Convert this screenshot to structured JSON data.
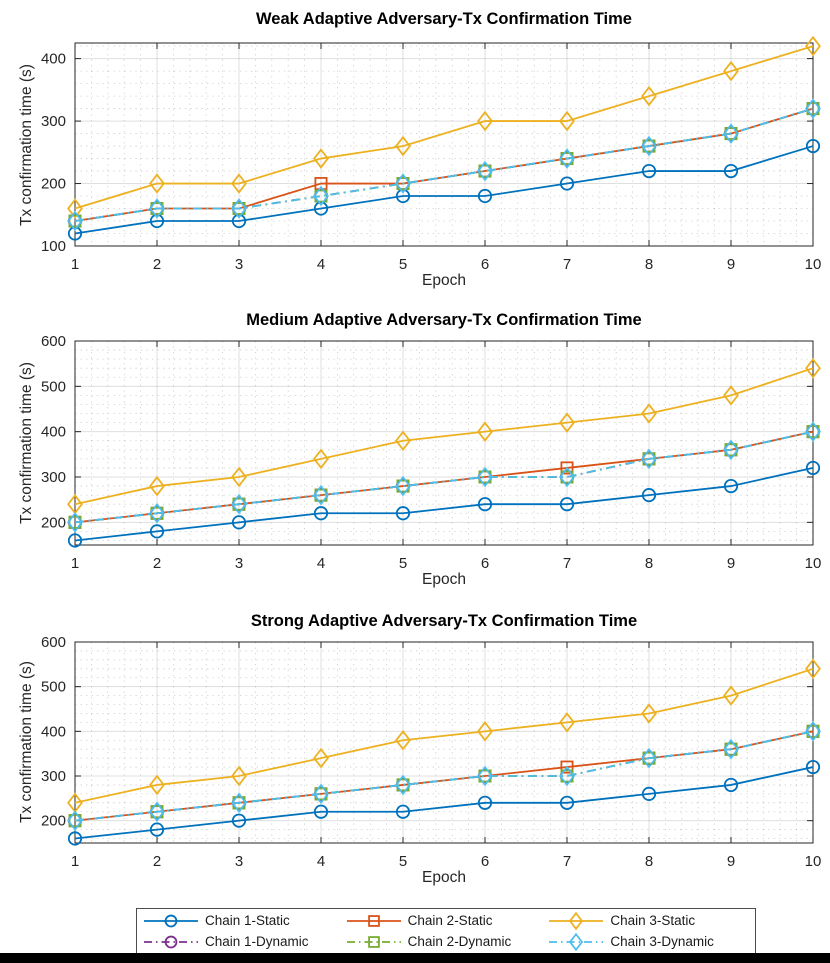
{
  "figure": {
    "background": "#ffffff",
    "bottom_bar_color": "#000000"
  },
  "chart_data": [
    {
      "type": "line",
      "title": "Weak Adaptive Adversary-Tx Confirmation Time",
      "xlabel": "Epoch",
      "ylabel": "Tx confirmation time (s)",
      "x": [
        1,
        2,
        3,
        4,
        5,
        6,
        7,
        8,
        9,
        10
      ],
      "xlim": [
        1,
        10
      ],
      "ylim": [
        100,
        425
      ],
      "yticks": [
        100,
        200,
        300,
        400
      ],
      "grid": {
        "major": true,
        "minor": true
      },
      "legend_position": "bottom",
      "series": [
        {
          "name": "Chain 1-Static",
          "color": "#0072BD",
          "marker": "circle",
          "line": "solid",
          "values": [
            120,
            140,
            140,
            160,
            180,
            180,
            200,
            220,
            220,
            260
          ]
        },
        {
          "name": "Chain 2-Static",
          "color": "#D95319",
          "marker": "square",
          "line": "solid",
          "values": [
            140,
            160,
            160,
            200,
            200,
            220,
            240,
            260,
            280,
            320
          ]
        },
        {
          "name": "Chain 3-Static",
          "color": "#EDB120",
          "marker": "diamond",
          "line": "solid",
          "values": [
            160,
            200,
            200,
            240,
            260,
            300,
            300,
            340,
            380,
            420
          ]
        },
        {
          "name": "Chain 1-Dynamic",
          "color": "#7E2F8E",
          "marker": "circle",
          "line": "dashdot",
          "values": [
            140,
            160,
            160,
            180,
            200,
            220,
            240,
            260,
            280,
            320
          ]
        },
        {
          "name": "Chain 2-Dynamic",
          "color": "#77AC30",
          "marker": "square",
          "line": "dashdot",
          "values": [
            140,
            160,
            160,
            180,
            200,
            220,
            240,
            260,
            280,
            320
          ]
        },
        {
          "name": "Chain 3-Dynamic",
          "color": "#4DBEEE",
          "marker": "diamond",
          "line": "dashdot",
          "values": [
            140,
            160,
            160,
            180,
            200,
            220,
            240,
            260,
            280,
            320
          ]
        }
      ]
    },
    {
      "type": "line",
      "title": "Medium Adaptive Adversary-Tx Confirmation Time",
      "xlabel": "Epoch",
      "ylabel": "Tx confirmation time (s)",
      "x": [
        1,
        2,
        3,
        4,
        5,
        6,
        7,
        8,
        9,
        10
      ],
      "xlim": [
        1,
        10
      ],
      "ylim": [
        150,
        600
      ],
      "yticks": [
        200,
        300,
        400,
        500,
        600
      ],
      "grid": {
        "major": true,
        "minor": true
      },
      "legend_position": "bottom",
      "series": [
        {
          "name": "Chain 1-Static",
          "color": "#0072BD",
          "marker": "circle",
          "line": "solid",
          "values": [
            160,
            180,
            200,
            220,
            220,
            240,
            240,
            260,
            280,
            320
          ]
        },
        {
          "name": "Chain 2-Static",
          "color": "#D95319",
          "marker": "square",
          "line": "solid",
          "values": [
            200,
            220,
            240,
            260,
            280,
            300,
            320,
            340,
            360,
            400
          ]
        },
        {
          "name": "Chain 3-Static",
          "color": "#EDB120",
          "marker": "diamond",
          "line": "solid",
          "values": [
            240,
            280,
            300,
            340,
            380,
            400,
            420,
            440,
            480,
            540
          ]
        },
        {
          "name": "Chain 1-Dynamic",
          "color": "#7E2F8E",
          "marker": "circle",
          "line": "dashdot",
          "values": [
            200,
            220,
            240,
            260,
            280,
            300,
            300,
            340,
            360,
            400
          ]
        },
        {
          "name": "Chain 2-Dynamic",
          "color": "#77AC30",
          "marker": "square",
          "line": "dashdot",
          "values": [
            200,
            220,
            240,
            260,
            280,
            300,
            300,
            340,
            360,
            400
          ]
        },
        {
          "name": "Chain 3-Dynamic",
          "color": "#4DBEEE",
          "marker": "diamond",
          "line": "dashdot",
          "values": [
            200,
            220,
            240,
            260,
            280,
            300,
            300,
            340,
            360,
            400
          ]
        }
      ]
    },
    {
      "type": "line",
      "title": "Strong Adaptive Adversary-Tx Confirmation Time",
      "xlabel": "Epoch",
      "ylabel": "Tx confirmation time (s)",
      "x": [
        1,
        2,
        3,
        4,
        5,
        6,
        7,
        8,
        9,
        10
      ],
      "xlim": [
        1,
        10
      ],
      "ylim": [
        150,
        600
      ],
      "yticks": [
        200,
        300,
        400,
        500,
        600
      ],
      "grid": {
        "major": true,
        "minor": true
      },
      "legend_position": "bottom",
      "series": [
        {
          "name": "Chain 1-Static",
          "color": "#0072BD",
          "marker": "circle",
          "line": "solid",
          "values": [
            160,
            180,
            200,
            220,
            220,
            240,
            240,
            260,
            280,
            320
          ]
        },
        {
          "name": "Chain 2-Static",
          "color": "#D95319",
          "marker": "square",
          "line": "solid",
          "values": [
            200,
            220,
            240,
            260,
            280,
            300,
            320,
            340,
            360,
            400
          ]
        },
        {
          "name": "Chain 3-Static",
          "color": "#EDB120",
          "marker": "diamond",
          "line": "solid",
          "values": [
            240,
            280,
            300,
            340,
            380,
            400,
            420,
            440,
            480,
            540
          ]
        },
        {
          "name": "Chain 1-Dynamic",
          "color": "#7E2F8E",
          "marker": "circle",
          "line": "dashdot",
          "values": [
            200,
            220,
            240,
            260,
            280,
            300,
            300,
            340,
            360,
            400
          ]
        },
        {
          "name": "Chain 2-Dynamic",
          "color": "#77AC30",
          "marker": "square",
          "line": "dashdot",
          "values": [
            200,
            220,
            240,
            260,
            280,
            300,
            300,
            340,
            360,
            400
          ]
        },
        {
          "name": "Chain 3-Dynamic",
          "color": "#4DBEEE",
          "marker": "diamond",
          "line": "dashdot",
          "values": [
            200,
            220,
            240,
            260,
            280,
            300,
            300,
            340,
            360,
            400
          ]
        }
      ]
    }
  ],
  "legend": {
    "rows": 2,
    "columns": 3,
    "items": [
      {
        "label": "Chain 1-Static",
        "color": "#0072BD",
        "marker": "circle",
        "line": "solid"
      },
      {
        "label": "Chain 2-Static",
        "color": "#D95319",
        "marker": "square",
        "line": "solid"
      },
      {
        "label": "Chain 3-Static",
        "color": "#EDB120",
        "marker": "diamond",
        "line": "solid"
      },
      {
        "label": "Chain 1-Dynamic",
        "color": "#7E2F8E",
        "marker": "circle",
        "line": "dashdot"
      },
      {
        "label": "Chain 2-Dynamic",
        "color": "#77AC30",
        "marker": "square",
        "line": "dashdot"
      },
      {
        "label": "Chain 3-Dynamic",
        "color": "#4DBEEE",
        "marker": "diamond",
        "line": "dashdot"
      }
    ]
  }
}
